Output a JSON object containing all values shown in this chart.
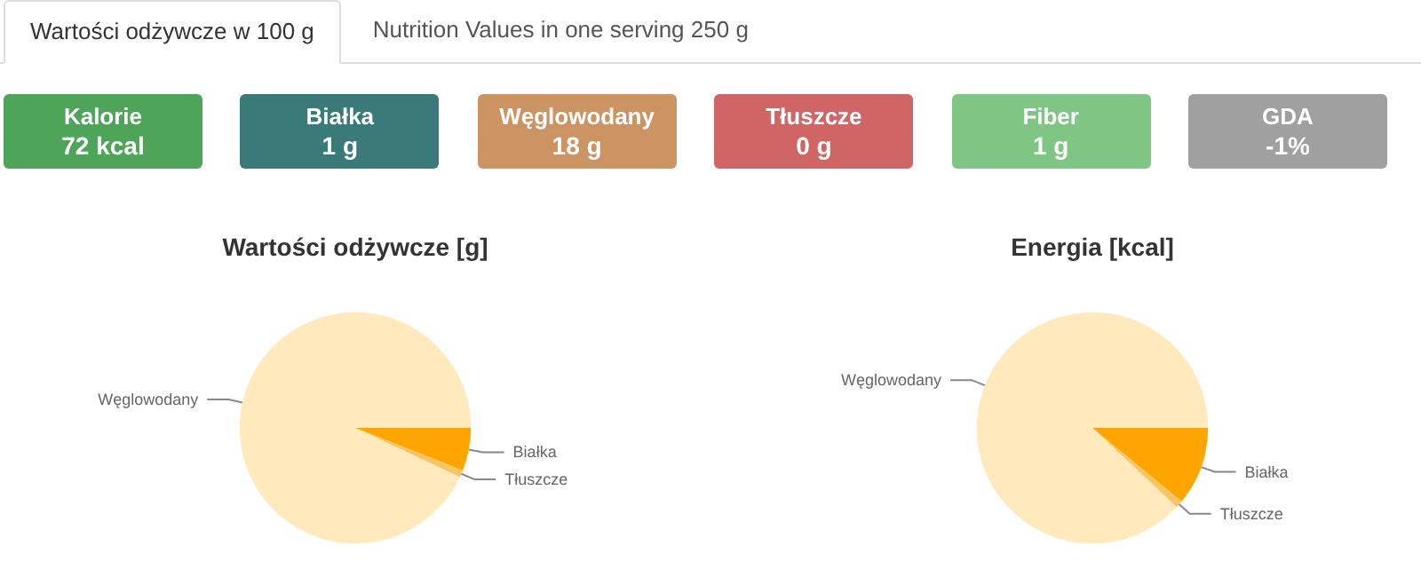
{
  "chart_data": [
    {
      "type": "other",
      "annotations": [
        "Wartości odżywcze w 100 g",
        "Nutrition Values in one serving 250 g"
      ],
      "categories": [
        "Kalorie",
        "Białka",
        "Węglowodany",
        "Tłuszcze",
        "Fiber",
        "GDA"
      ],
      "value_labels": [
        "72 kcal",
        "1 g",
        "18 g",
        "0 g",
        "1 g",
        "-1%"
      ],
      "colors": [
        "#4ea55a",
        "#3a7a78",
        "#cc9363",
        "#cf6665",
        "#7fc584",
        "#a0a0a0"
      ]
    },
    {
      "type": "pie",
      "title": "Wartości odżywcze [g]",
      "categories": [
        "Białka",
        "Tłuszcze",
        "Węglowodany"
      ],
      "values": [
        6,
        1,
        93
      ],
      "colors": [
        "#ffa500",
        "#f7c467",
        "#ffe9bd"
      ]
    },
    {
      "type": "pie",
      "title": "Energia [kcal]",
      "categories": [
        "Białka",
        "Tłuszcze",
        "Węglowodany"
      ],
      "values": [
        11,
        1,
        88
      ],
      "colors": [
        "#ffa500",
        "#f7c467",
        "#ffe9bd"
      ]
    }
  ]
}
